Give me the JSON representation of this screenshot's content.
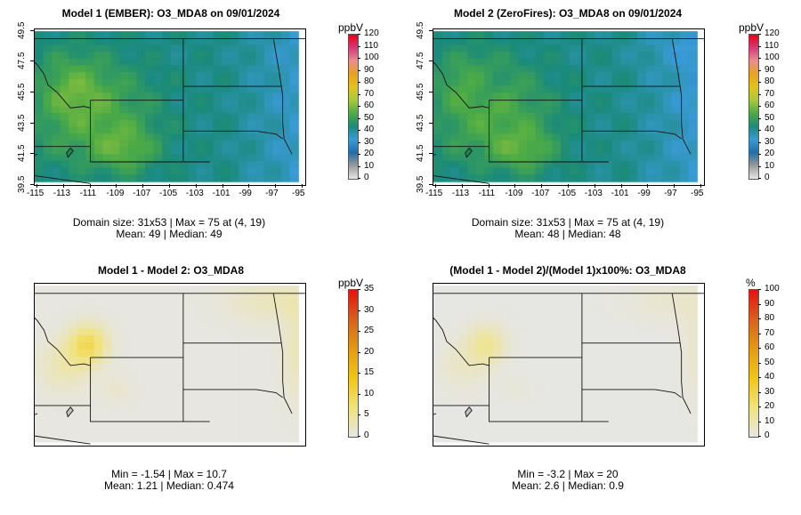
{
  "panels": [
    {
      "id": "p1",
      "title": "Model 1 (EMBER): O3_MDA8 on 09/01/2024",
      "stat_line1": "Domain size: 31x53 | Max = 75 at (4, 19)",
      "stat_line2": "Mean: 49 |  Median: 49",
      "unit": "ppbV",
      "cb_labels": [
        "0",
        "10",
        "20",
        "30",
        "40",
        "50",
        "60",
        "70",
        "80",
        "90",
        "100",
        "110",
        "120"
      ],
      "palette": "conc",
      "field": "m1"
    },
    {
      "id": "p2",
      "title": "Model 2 (ZeroFires): O3_MDA8 on 09/01/2024",
      "stat_line1": "Domain size: 31x53 | Max = 75 at (4, 19)",
      "stat_line2": "Mean: 48 |  Median: 48",
      "unit": "ppbV",
      "cb_labels": [
        "0",
        "10",
        "20",
        "30",
        "40",
        "50",
        "60",
        "70",
        "80",
        "90",
        "100",
        "110",
        "120"
      ],
      "palette": "conc",
      "field": "m2"
    },
    {
      "id": "p3",
      "title": "Model 1 - Model 2: O3_MDA8",
      "stat_line1": "Min = -1.54 | Max = 10.7",
      "stat_line2": "Mean: 1.21 |  Median: 0.474",
      "unit": "ppbV",
      "cb_labels": [
        "0",
        "5",
        "10",
        "15",
        "20",
        "25",
        "30",
        "35"
      ],
      "palette": "diff",
      "field": "d"
    },
    {
      "id": "p4",
      "title": "(Model 1 - Model 2)/(Model 1)x100%: O3_MDA8",
      "stat_line1": "Min = -3.2 | Max = 20",
      "stat_line2": "Mean: 2.6 |  Median: 0.9",
      "unit": "%",
      "cb_labels": [
        "0",
        "10",
        "20",
        "30",
        "40",
        "50",
        "60",
        "70",
        "80",
        "90",
        "100"
      ],
      "palette": "diff",
      "field": "pct"
    }
  ],
  "x_ticks": [
    "-115",
    "-113",
    "-111",
    "-109",
    "-107",
    "-105",
    "-103",
    "-101",
    "-99",
    "-97",
    "-95"
  ],
  "y_ticks": [
    "39.5",
    "41.5",
    "43.5",
    "45.5",
    "47.5",
    "49.5"
  ],
  "map_extent": {
    "lon": [
      -115.2,
      -94.8
    ],
    "lat": [
      39.5,
      49.6
    ]
  },
  "colors": {
    "conc_stops": [
      "#e6e6e6",
      "#9a9a9a",
      "#1f6fa8",
      "#3a9bd6",
      "#1a8a7a",
      "#4cab46",
      "#a7c93a",
      "#e3c21d",
      "#e6a21f",
      "#ea8d8d",
      "#d33a7a",
      "#ee0011"
    ],
    "diff_stops": [
      "#e6e6e6",
      "#f1e37a",
      "#f0c616",
      "#e49a12",
      "#d8601b",
      "#e81010"
    ]
  }
}
